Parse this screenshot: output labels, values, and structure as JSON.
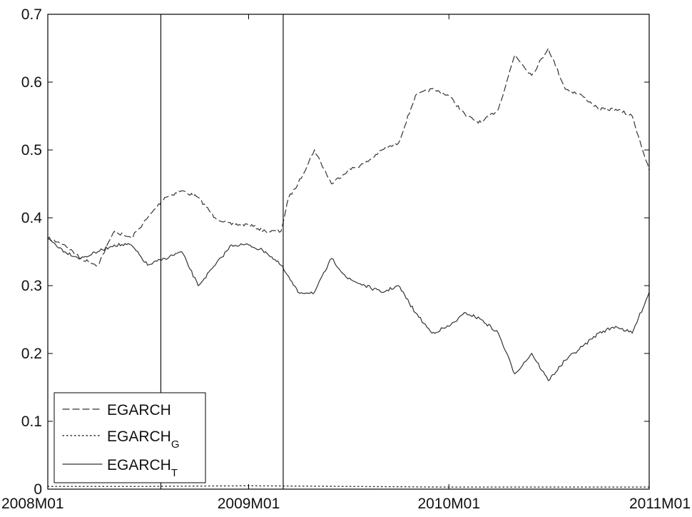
{
  "chart_data": {
    "type": "line",
    "title": "",
    "xlabel": "",
    "ylabel": "",
    "x_range": [
      "2008-01",
      "2011-01"
    ],
    "ylim": [
      0,
      0.7
    ],
    "x_ticks": [
      "2008M01",
      "2009M01",
      "2010M01",
      "2011M01"
    ],
    "y_ticks": [
      "0",
      "0.1",
      "0.2",
      "0.3",
      "0.4",
      "0.5",
      "0.6",
      "0.7"
    ],
    "grid": false,
    "legend_position": "bottom-left",
    "vertical_markers": [
      "2008-07-25",
      "2009-03-05"
    ],
    "series": [
      {
        "base": "EGARCH",
        "subscript": "",
        "style": "dashed",
        "x": [
          "2008-01-01",
          "2008-02-01",
          "2008-03-01",
          "2008-04-01",
          "2008-05-01",
          "2008-06-01",
          "2008-07-01",
          "2008-08-01",
          "2008-09-01",
          "2008-10-01",
          "2008-11-01",
          "2008-12-01",
          "2009-01-01",
          "2009-02-01",
          "2009-03-01",
          "2009-03-15",
          "2009-04-01",
          "2009-05-01",
          "2009-06-01",
          "2009-07-01",
          "2009-08-01",
          "2009-09-01",
          "2009-10-01",
          "2009-11-01",
          "2009-12-01",
          "2010-01-01",
          "2010-02-01",
          "2010-03-01",
          "2010-04-01",
          "2010-05-01",
          "2010-06-01",
          "2010-07-01",
          "2010-08-01",
          "2010-09-01",
          "2010-10-01",
          "2010-11-01",
          "2010-12-01",
          "2011-01-01"
        ],
        "y": [
          0.37,
          0.36,
          0.34,
          0.33,
          0.38,
          0.37,
          0.4,
          0.43,
          0.44,
          0.43,
          0.4,
          0.39,
          0.39,
          0.38,
          0.38,
          0.43,
          0.45,
          0.5,
          0.45,
          0.47,
          0.48,
          0.5,
          0.51,
          0.58,
          0.59,
          0.58,
          0.55,
          0.54,
          0.56,
          0.64,
          0.61,
          0.65,
          0.59,
          0.58,
          0.56,
          0.56,
          0.55,
          0.47
        ]
      },
      {
        "base": "EGARCH",
        "subscript": "G",
        "style": "dotted",
        "x": [
          "2008-01-01",
          "2008-07-01",
          "2009-01-01",
          "2009-07-01",
          "2010-01-01",
          "2010-07-01",
          "2011-01-01"
        ],
        "y": [
          0.004,
          0.004,
          0.005,
          0.004,
          0.003,
          0.003,
          0.003
        ]
      },
      {
        "base": "EGARCH",
        "subscript": "T",
        "style": "solid",
        "x": [
          "2008-01-01",
          "2008-02-01",
          "2008-03-01",
          "2008-04-01",
          "2008-05-01",
          "2008-06-01",
          "2008-07-01",
          "2008-08-01",
          "2008-09-01",
          "2008-10-01",
          "2008-11-01",
          "2008-12-01",
          "2009-01-01",
          "2009-02-01",
          "2009-03-01",
          "2009-04-01",
          "2009-05-01",
          "2009-06-01",
          "2009-07-01",
          "2009-08-01",
          "2009-09-01",
          "2009-10-01",
          "2009-11-01",
          "2009-12-01",
          "2010-01-01",
          "2010-02-01",
          "2010-03-01",
          "2010-04-01",
          "2010-05-01",
          "2010-06-01",
          "2010-07-01",
          "2010-08-01",
          "2010-09-01",
          "2010-10-01",
          "2010-11-01",
          "2010-12-01",
          "2011-01-01"
        ],
        "y": [
          0.37,
          0.35,
          0.34,
          0.35,
          0.36,
          0.36,
          0.33,
          0.34,
          0.35,
          0.3,
          0.33,
          0.36,
          0.36,
          0.35,
          0.33,
          0.29,
          0.29,
          0.34,
          0.31,
          0.3,
          0.29,
          0.3,
          0.26,
          0.23,
          0.24,
          0.26,
          0.25,
          0.23,
          0.17,
          0.2,
          0.16,
          0.19,
          0.21,
          0.23,
          0.24,
          0.23,
          0.29
        ]
      }
    ]
  }
}
